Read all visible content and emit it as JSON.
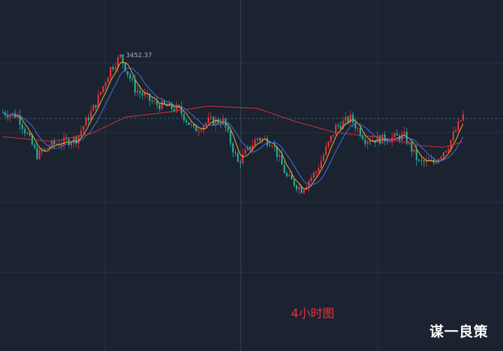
{
  "caption": "4小时图",
  "brand": "谋一良策",
  "colors": {
    "background": "#1b2230",
    "grid": "#2a3444",
    "up": "#e8353d",
    "down": "#22b39e",
    "ma_short": "#f0a830",
    "ma_mid": "#3b6fe0",
    "ma_long": "#c9323b",
    "caption": "#e8353d",
    "brand": "#ffffff"
  },
  "chart_data": {
    "type": "candlestick",
    "title": "",
    "peak_label": "3452.37",
    "y_range": [
      3155,
      3475
    ],
    "current_price": 3345,
    "close_path": [
      {
        "i": 0,
        "v": 3355
      },
      {
        "i": 6,
        "v": 3350
      },
      {
        "i": 14,
        "v": 3283
      },
      {
        "i": 20,
        "v": 3300
      },
      {
        "i": 30,
        "v": 3310
      },
      {
        "i": 38,
        "v": 3370
      },
      {
        "i": 44,
        "v": 3430
      },
      {
        "i": 48,
        "v": 3450
      },
      {
        "i": 54,
        "v": 3395
      },
      {
        "i": 62,
        "v": 3370
      },
      {
        "i": 72,
        "v": 3360
      },
      {
        "i": 78,
        "v": 3325
      },
      {
        "i": 84,
        "v": 3340
      },
      {
        "i": 90,
        "v": 3340
      },
      {
        "i": 96,
        "v": 3270
      },
      {
        "i": 104,
        "v": 3312
      },
      {
        "i": 110,
        "v": 3305
      },
      {
        "i": 116,
        "v": 3245
      },
      {
        "i": 122,
        "v": 3225
      },
      {
        "i": 128,
        "v": 3255
      },
      {
        "i": 136,
        "v": 3330
      },
      {
        "i": 142,
        "v": 3345
      },
      {
        "i": 148,
        "v": 3310
      },
      {
        "i": 156,
        "v": 3310
      },
      {
        "i": 164,
        "v": 3315
      },
      {
        "i": 170,
        "v": 3270
      },
      {
        "i": 176,
        "v": 3270
      },
      {
        "i": 182,
        "v": 3300
      },
      {
        "i": 188,
        "v": 3350
      }
    ],
    "ma_long_path": [
      {
        "i": 0,
        "v": 3314
      },
      {
        "i": 20,
        "v": 3306
      },
      {
        "i": 36,
        "v": 3319
      },
      {
        "i": 50,
        "v": 3347
      },
      {
        "i": 68,
        "v": 3356
      },
      {
        "i": 84,
        "v": 3366
      },
      {
        "i": 104,
        "v": 3362
      },
      {
        "i": 120,
        "v": 3339
      },
      {
        "i": 136,
        "v": 3321
      },
      {
        "i": 156,
        "v": 3312
      },
      {
        "i": 170,
        "v": 3299
      },
      {
        "i": 180,
        "v": 3296
      },
      {
        "i": 188,
        "v": 3305
      }
    ]
  }
}
